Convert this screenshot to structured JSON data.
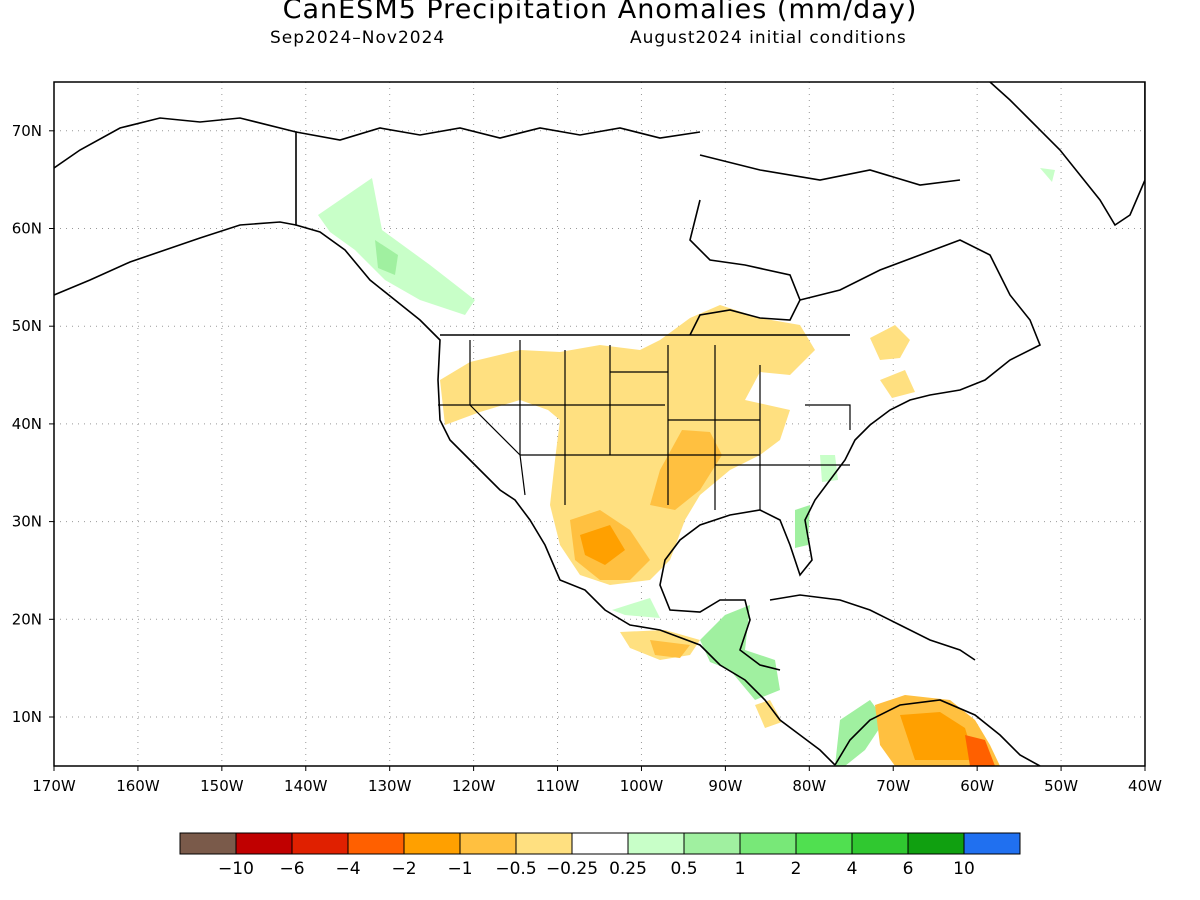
{
  "title": "CanESM5 Precipitation Anomalies (mm/day)",
  "subtitle_left": "Sep2024–Nov2024",
  "subtitle_right": "August2024 initial conditions",
  "map": {
    "lon_labels": [
      "170W",
      "160W",
      "150W",
      "140W",
      "130W",
      "120W",
      "110W",
      "100W",
      "90W",
      "80W",
      "70W",
      "60W",
      "50W",
      "40W"
    ],
    "lat_labels": [
      "10N",
      "20N",
      "30N",
      "40N",
      "50N",
      "60N",
      "70N"
    ],
    "grid": "dotted",
    "region": "North America"
  },
  "colorbar": {
    "labels": [
      "−10",
      "−6",
      "−4",
      "−2",
      "−1",
      "−0.5",
      "−0.25",
      "0.25",
      "0.5",
      "1",
      "2",
      "4",
      "6",
      "10"
    ],
    "colors": [
      "#7a5a4a",
      "#c00000",
      "#e02000",
      "#ff6000",
      "#ffa000",
      "#ffc040",
      "#ffe080",
      "#ffffff",
      "#c8ffc8",
      "#a0f0a0",
      "#78e878",
      "#50e050",
      "#30c830",
      "#10a010",
      "#2070f0"
    ]
  }
}
